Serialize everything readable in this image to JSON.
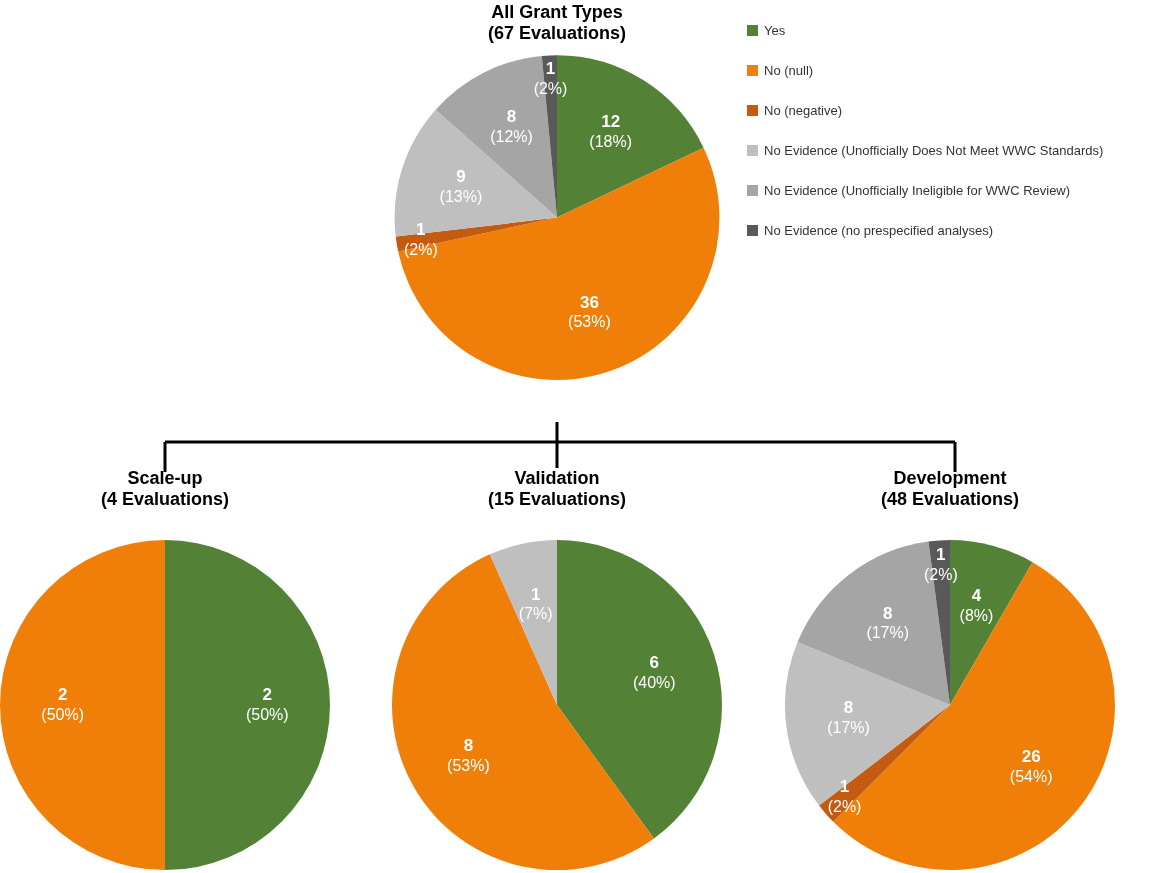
{
  "chart_data": [
    {
      "type": "pie",
      "title": "All Grant Types",
      "subtitle": "(67 Evaluations)",
      "legend": "right",
      "categories": [
        "Yes",
        "No (null)",
        "No (negative)",
        "No Evidence (Unofficially Does Not Meet WWC Standards)",
        "No Evidence (Unofficially Ineligible for WWC Review)",
        "No Evidence (no prespecified analyses)"
      ],
      "values": [
        12,
        36,
        1,
        9,
        8,
        1
      ],
      "colors": [
        "#538135",
        "#f07f09",
        "#c55a11",
        "#bfbfbf",
        "#a5a5a5",
        "#595959"
      ],
      "value_labels": [
        "12\n(18%)",
        "36\n(53%)",
        "1\n(2%)",
        "9\n(13%)",
        "8\n(12%)",
        "1\n(2%)"
      ]
    },
    {
      "type": "pie",
      "title": "Scale-up",
      "subtitle": "(4 Evaluations)",
      "values": [
        2,
        2
      ],
      "colors": [
        "#538135",
        "#f07f09"
      ],
      "value_labels": [
        "2\n(50%)",
        "2\n(50%)"
      ]
    },
    {
      "type": "pie",
      "title": "Validation",
      "subtitle": "(15 Evaluations)",
      "values": [
        6,
        8,
        1
      ],
      "colors": [
        "#538135",
        "#f07f09",
        "#bfbfbf"
      ],
      "value_labels": [
        "6\n(40%)",
        "8\n(53%)",
        "1\n(7%)"
      ]
    },
    {
      "type": "pie",
      "title": "Development",
      "subtitle": "(48 Evaluations)",
      "values": [
        4,
        26,
        1,
        8,
        8,
        1
      ],
      "colors": [
        "#538135",
        "#f07f09",
        "#c55a11",
        "#bfbfbf",
        "#a5a5a5",
        "#595959"
      ],
      "value_labels": [
        "4\n(8%)",
        "26\n(54%)",
        "1\n(2%)",
        "8\n(17%)",
        "8\n(17%)",
        "1\n(2%)"
      ]
    }
  ]
}
